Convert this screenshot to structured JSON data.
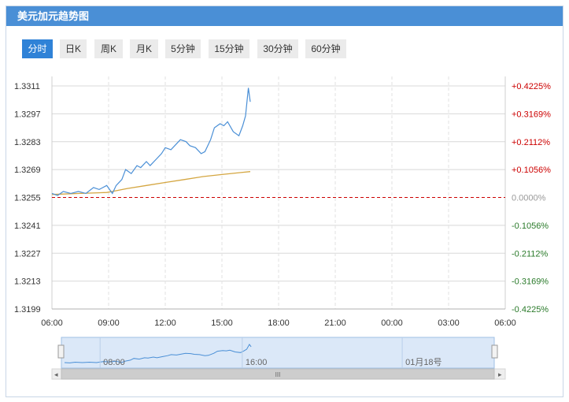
{
  "title": "美元加元趋势图",
  "tabs": [
    {
      "label": "分时",
      "active": true
    },
    {
      "label": "日K",
      "active": false
    },
    {
      "label": "周K",
      "active": false
    },
    {
      "label": "月K",
      "active": false
    },
    {
      "label": "5分钟",
      "active": false
    },
    {
      "label": "15分钟",
      "active": false
    },
    {
      "label": "30分钟",
      "active": false
    },
    {
      "label": "60分钟",
      "active": false
    }
  ],
  "colors": {
    "titlebar": "#4a8fd6",
    "tab_active": "#2f82d7",
    "price_line": "#4a8fd6",
    "avg_line": "#d4a641",
    "baseline": "#cc0000",
    "pct_up": "#cc0000",
    "pct_down": "#2a7a2a",
    "pct_flat": "#999999"
  },
  "chart_data": {
    "type": "line",
    "y_ticks": [
      "1.3311",
      "1.3297",
      "1.3283",
      "1.3269",
      "1.3255",
      "1.3241",
      "1.3227",
      "1.3213",
      "1.3199"
    ],
    "pct_ticks": [
      "+0.4225%",
      "+0.3169%",
      "+0.2112%",
      "+0.1056%",
      "0.0000%",
      "-0.1056%",
      "-0.2112%",
      "-0.3169%",
      "-0.4225%"
    ],
    "x_ticks": [
      "06:00",
      "09:00",
      "12:00",
      "15:00",
      "18:00",
      "21:00",
      "00:00",
      "03:00",
      "06:00"
    ],
    "ylim": [
      1.3199,
      1.3311
    ],
    "base_price": 1.3255,
    "price_series": {
      "hours": [
        0,
        0.3,
        0.6,
        1.0,
        1.4,
        1.8,
        2.2,
        2.5,
        2.9,
        3.2,
        3.4,
        3.7,
        3.9,
        4.2,
        4.5,
        4.7,
        5.0,
        5.2,
        5.5,
        5.8,
        6.0,
        6.3,
        6.6,
        6.8,
        7.1,
        7.3,
        7.6,
        7.9,
        8.1,
        8.4,
        8.6,
        8.9,
        9.1,
        9.3,
        9.6,
        9.9,
        10.1,
        10.25,
        10.4,
        10.5
      ],
      "values": [
        1.3257,
        1.3256,
        1.3258,
        1.3257,
        1.3258,
        1.3257,
        1.326,
        1.3259,
        1.3261,
        1.3257,
        1.3261,
        1.3264,
        1.3269,
        1.3267,
        1.3271,
        1.327,
        1.3273,
        1.3271,
        1.3274,
        1.3277,
        1.328,
        1.3279,
        1.3282,
        1.3284,
        1.3283,
        1.3281,
        1.328,
        1.3277,
        1.3278,
        1.3284,
        1.329,
        1.3292,
        1.3291,
        1.3293,
        1.3288,
        1.3286,
        1.3291,
        1.3296,
        1.331,
        1.3303
      ]
    },
    "avg_series": {
      "hours": [
        0,
        1.5,
        2.9,
        3.2,
        4.0,
        5.0,
        6.0,
        7.0,
        8.0,
        9.0,
        10.0,
        10.5
      ],
      "values": [
        1.32565,
        1.3257,
        1.32575,
        1.3258,
        1.32595,
        1.3261,
        1.32625,
        1.3264,
        1.32655,
        1.32665,
        1.32675,
        1.3268
      ]
    },
    "navigator": {
      "tick_labels": [
        "08:00",
        "16:00",
        "01月18号"
      ],
      "scroll_label": "III"
    }
  }
}
